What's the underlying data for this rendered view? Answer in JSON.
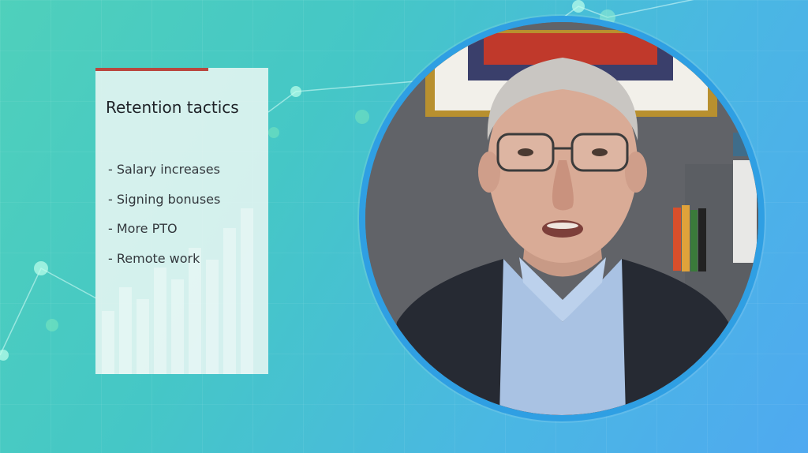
{
  "slide": {
    "title": "Retention tactics",
    "bullets": [
      "- Salary increases",
      "- Signing bonuses",
      "- More PTO",
      "- Remote work"
    ]
  },
  "colors": {
    "background_start": "#4fd0bb",
    "background_end": "#4fa9f0",
    "card_accent": "#b9473f",
    "video_ring": "#2f9fe3"
  },
  "media": {
    "speaker_video": "presenter-webcam-feed"
  }
}
